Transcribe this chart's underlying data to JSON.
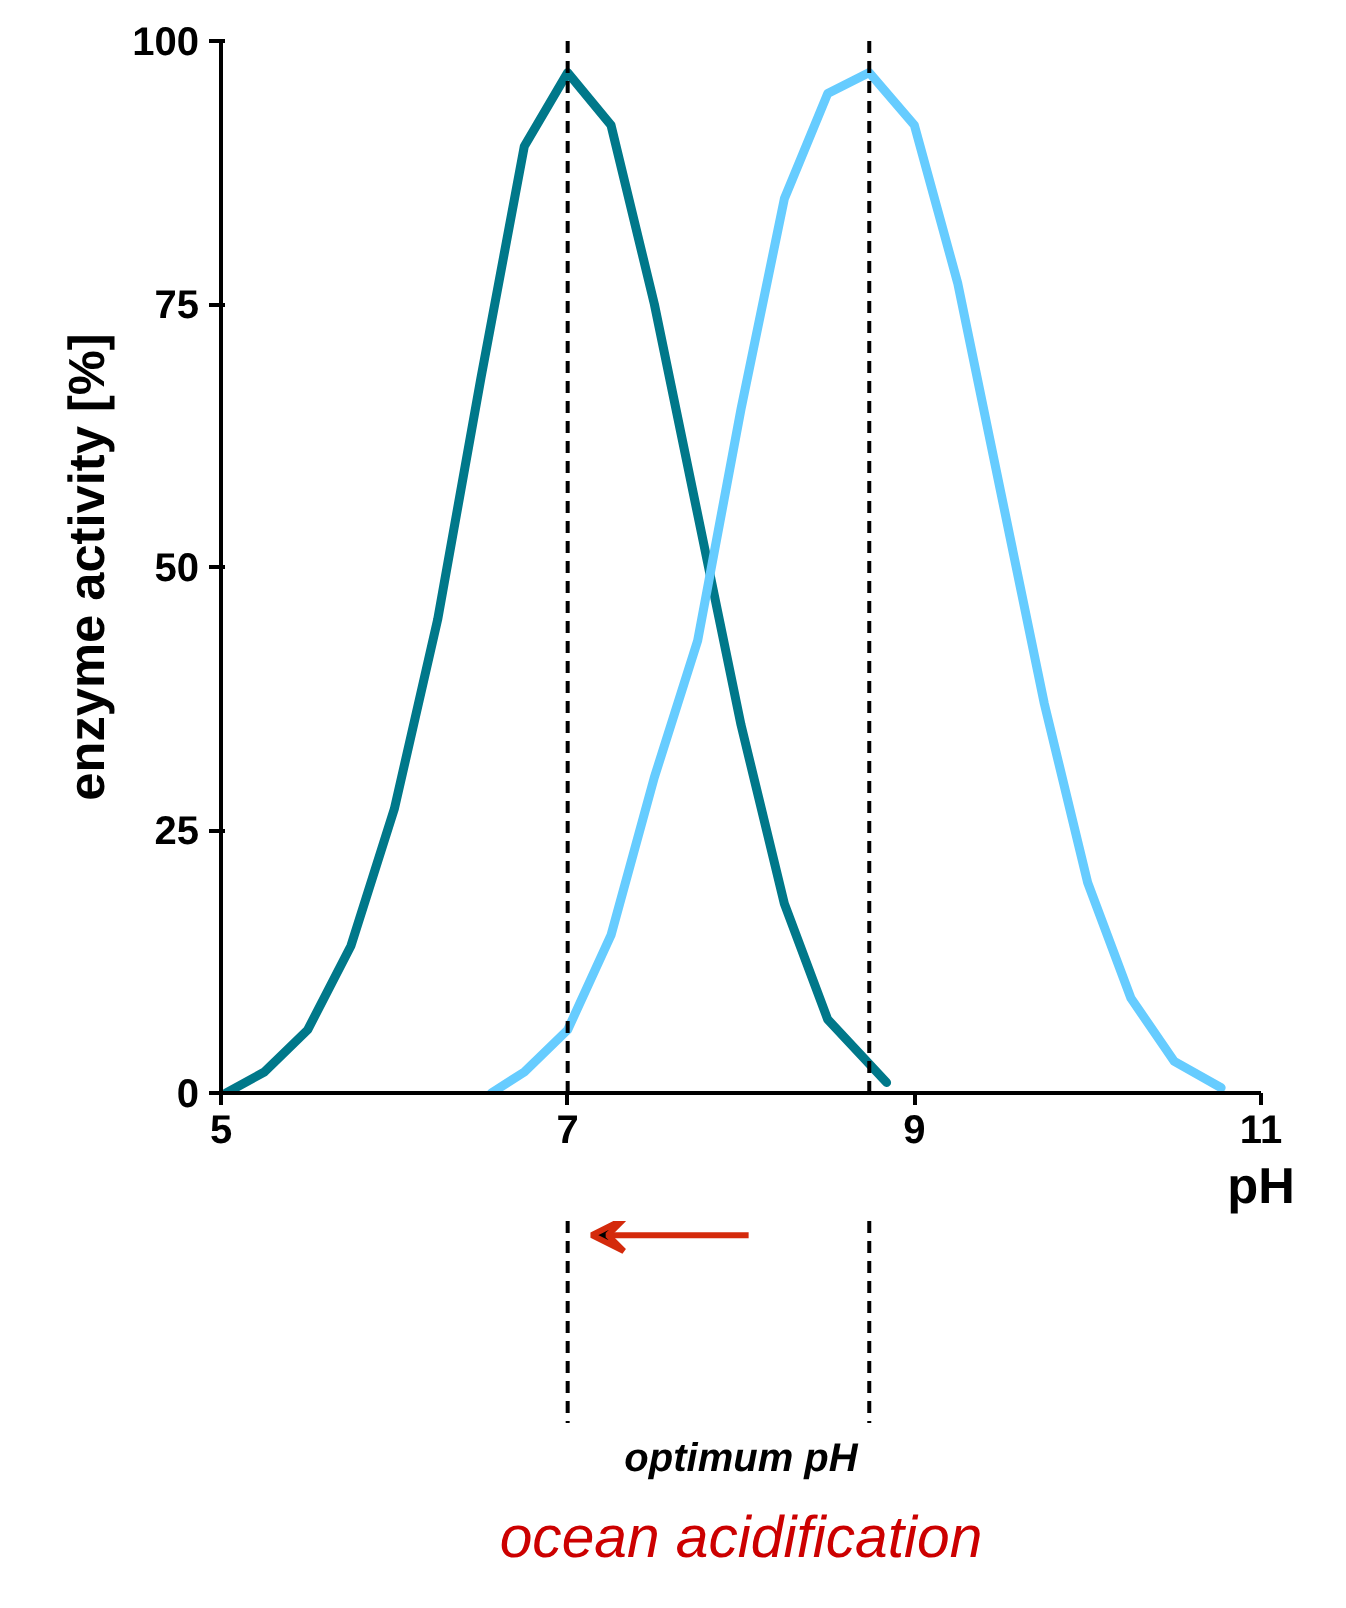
{
  "chart_data": {
    "type": "line",
    "xlabel": "pH",
    "ylabel": "enzyme activity [%]",
    "xlim": [
      5,
      11
    ],
    "xticks": [
      5,
      7,
      9,
      11
    ],
    "ylim": [
      0,
      100
    ],
    "yticks": [
      0,
      25,
      50,
      75,
      100
    ],
    "grid": false,
    "marker": "none",
    "line_style": "solid",
    "series": [
      {
        "color": "#00788a",
        "x": [
          5.03,
          5.25,
          5.5,
          5.75,
          6.0,
          6.25,
          6.5,
          6.75,
          7.0,
          7.25,
          7.5,
          7.75,
          8.0,
          8.25,
          8.5,
          8.84
        ],
        "values": [
          0,
          2,
          6,
          14,
          27,
          45,
          68,
          90,
          97,
          92,
          75,
          55,
          35,
          18,
          7,
          1
        ]
      },
      {
        "color": "#66ccff",
        "x": [
          6.56,
          6.75,
          7.0,
          7.25,
          7.5,
          7.75,
          8.0,
          8.25,
          8.5,
          8.74,
          9.0,
          9.25,
          9.5,
          9.75,
          10.0,
          10.25,
          10.5,
          10.77
        ],
        "values": [
          0,
          2,
          6,
          15,
          30,
          43,
          65,
          85,
          95,
          97,
          92,
          77,
          57,
          37,
          20,
          9,
          3,
          0.5
        ]
      }
    ],
    "ref_lines": [
      {
        "axis": "x",
        "value": 7,
        "color": "#000000",
        "line_style": "dashed"
      },
      {
        "axis": "x",
        "value": 8.74,
        "color": "#000000",
        "line_style": "dashed"
      }
    ],
    "annotations": [
      "optimum pH",
      "ocean acidification"
    ]
  }
}
